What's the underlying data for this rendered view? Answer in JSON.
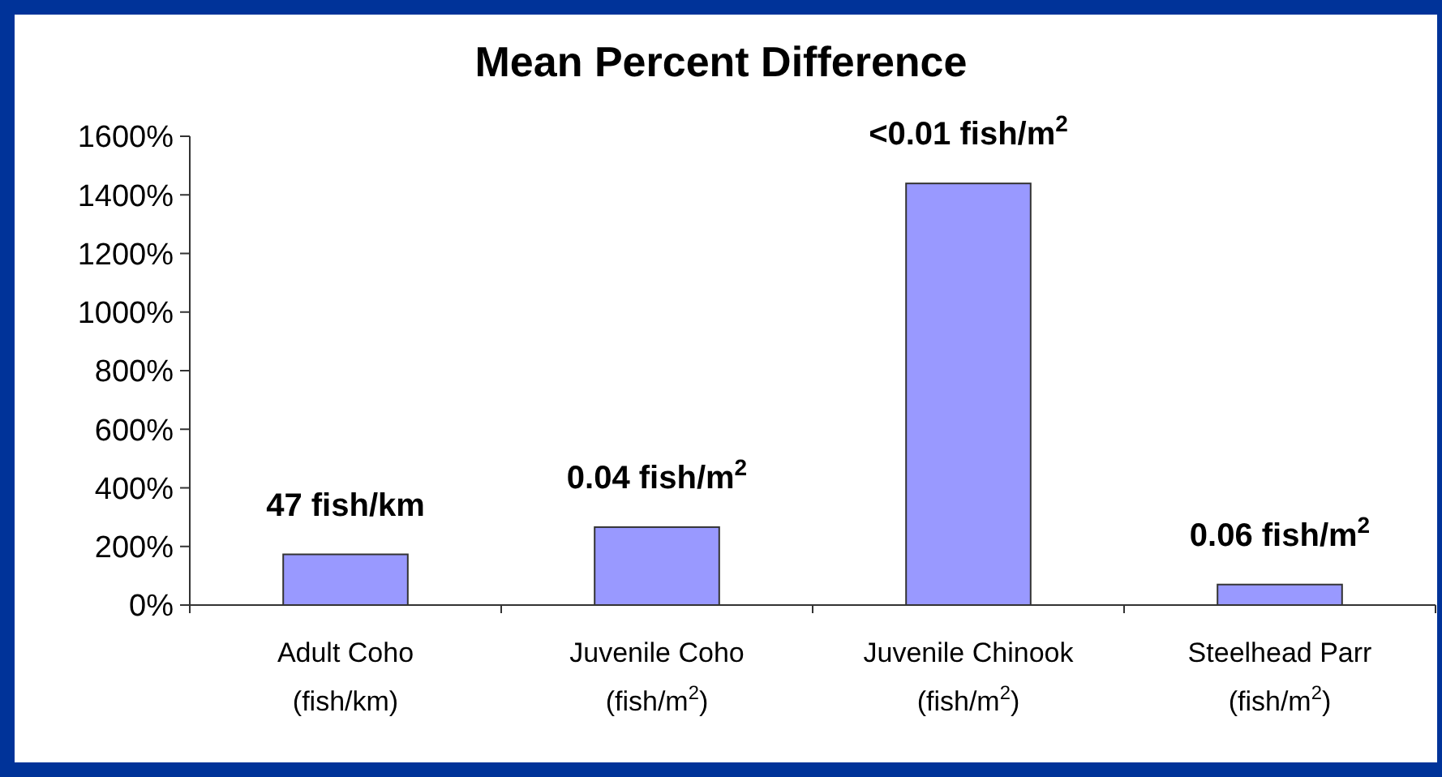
{
  "chart_data": {
    "type": "bar",
    "title": "Mean Percent Difference",
    "categories": [
      "Adult Coho\n(fish/km)",
      "Juvenile Coho\n(fish/m$^{2}$)",
      "Juvenile Chinook\n(fish/m$^{2}$)",
      "Steelhead Parr\n(fish/m$^{2}$)"
    ],
    "values": [
      173,
      266,
      1439,
      70
    ],
    "annotations": [
      {
        "text": "47 fish/km",
        "x": "Adult Coho\n(fish/km)",
        "y": 173
      },
      {
        "text": "0.04 fish/m$^{2}$",
        "x": "Juvenile Coho\n(fish/m$^{2}$)",
        "y": 266
      },
      {
        "text": "<0.01 fish/m$^{2}$",
        "x": "Juvenile Chinook\n(fish/m$^{2}$)",
        "y": 1439
      },
      {
        "text": "0.06 fish/m$^{2}$",
        "x": "Steelhead Parr\n(fish/m$^{2}$)",
        "y": 70
      }
    ],
    "color": "#9999ff",
    "ylim": [
      0,
      1600
    ],
    "yticks": [
      {
        "value": 0,
        "label": "0%"
      },
      {
        "value": 200,
        "label": "200%"
      },
      {
        "value": 400,
        "label": "400%"
      },
      {
        "value": 600,
        "label": "600%"
      },
      {
        "value": 800,
        "label": "800%"
      },
      {
        "value": 1000,
        "label": "1000%"
      },
      {
        "value": 1200,
        "label": "1200%"
      },
      {
        "value": 1400,
        "label": "1400%"
      },
      {
        "value": 1600,
        "label": "1600%"
      }
    ],
    "grid": false
  }
}
